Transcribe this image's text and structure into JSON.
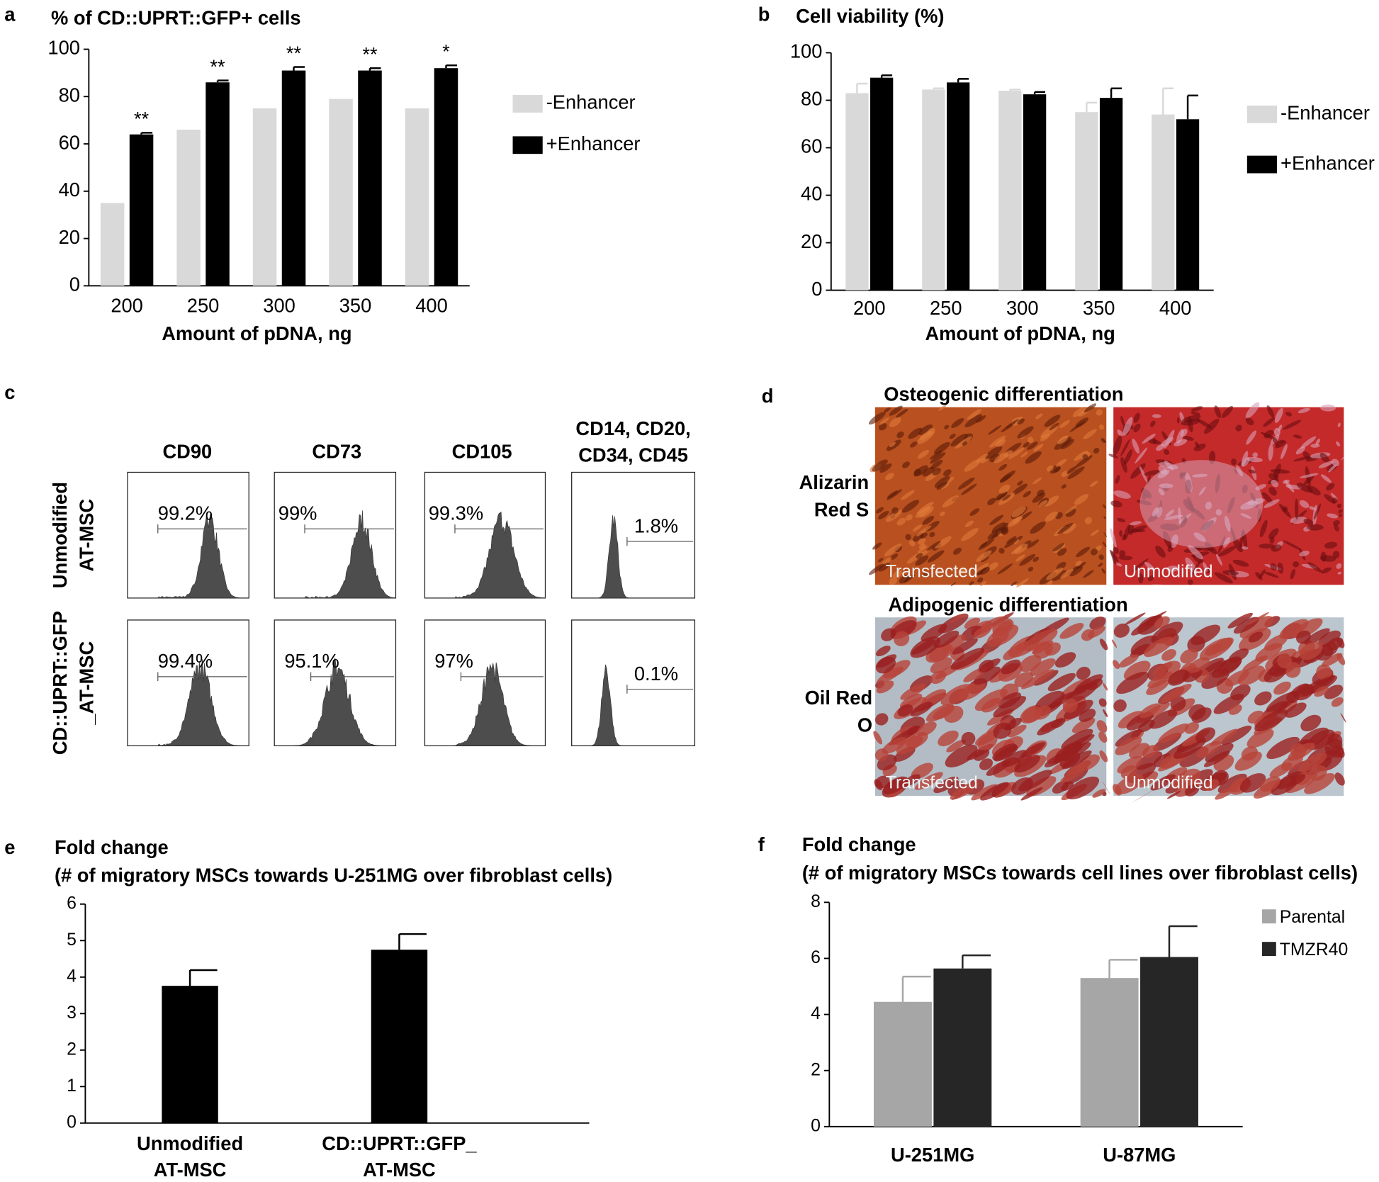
{
  "panel_labels": [
    "a",
    "b",
    "c",
    "d",
    "e",
    "f"
  ],
  "chart_data": [
    {
      "type": "bar",
      "title": "% of CD::UPRT::GFP+ cells",
      "x_label": "Amount of pDNA, ng",
      "categories": [
        "200",
        "250",
        "300",
        "350",
        "400"
      ],
      "series": [
        {
          "name": "-Enhancer",
          "color": "#d9d9d9",
          "values": [
            35,
            66,
            75,
            79,
            75
          ]
        },
        {
          "name": "+Enhancer",
          "color": "#000000",
          "values": [
            64,
            86,
            91,
            91,
            92
          ],
          "errors": [
            0.7,
            0.8,
            1.5,
            1,
            1.2
          ]
        }
      ],
      "annotations": [
        "**",
        "**",
        "**",
        "**",
        "*"
      ],
      "ylim": [
        0,
        100
      ],
      "yticks": [
        0,
        20,
        40,
        60,
        80,
        100
      ],
      "legend": "right"
    },
    {
      "type": "bar",
      "title": "Cell viability (%)",
      "x_label": "Amount of pDNA, ng",
      "categories": [
        "200",
        "250",
        "300",
        "350",
        "400"
      ],
      "series": [
        {
          "name": "-Enhancer",
          "color": "#d9d9d9",
          "values": [
            83,
            84.5,
            84,
            75,
            74
          ],
          "errors": [
            4,
            0.5,
            0.5,
            4,
            11
          ]
        },
        {
          "name": "+Enhancer",
          "color": "#000000",
          "values": [
            89.5,
            87.5,
            82.5,
            81,
            72
          ],
          "errors": [
            1,
            1.5,
            1,
            4,
            10
          ]
        }
      ],
      "ylim": [
        0,
        100
      ],
      "yticks": [
        0,
        20,
        40,
        60,
        80,
        100
      ],
      "legend": "right"
    },
    {
      "type": "bar",
      "title": "Fold change",
      "subtitle": "(# of migratory MSCs towards U-251MG over fibroblast cells)",
      "categories": [
        "Unmodified AT-MSC",
        "CD::UPRT::GFP_ AT-MSC"
      ],
      "series": [
        {
          "color": "#000000",
          "values": [
            3.76,
            4.75
          ],
          "errors": [
            0.43,
            0.43
          ]
        }
      ],
      "ylim": [
        0,
        6
      ],
      "yticks": [
        0,
        1,
        2,
        3,
        4,
        5,
        6
      ]
    },
    {
      "type": "bar",
      "title": "Fold change",
      "subtitle": "(# of migratory MSCs towards cell lines over fibroblast cells)",
      "categories": [
        "U-251MG",
        "U-87MG"
      ],
      "series": [
        {
          "name": "Parental",
          "color": "#a6a6a6",
          "values": [
            4.45,
            5.3
          ],
          "errors": [
            0.9,
            0.65
          ]
        },
        {
          "name": "TMZR40",
          "color": "#262626",
          "values": [
            5.64,
            6.05
          ],
          "errors": [
            0.47,
            1.1
          ]
        }
      ],
      "ylim": [
        0,
        8
      ],
      "yticks": [
        0,
        2,
        4,
        6,
        8
      ],
      "legend": "right"
    }
  ],
  "panel_c": {
    "column_headers": [
      [
        "CD90"
      ],
      [
        "CD73"
      ],
      [
        "CD105"
      ],
      [
        "CD14, CD20,",
        "CD34, CD45"
      ]
    ],
    "row_labels": [
      [
        "Unmodified",
        "AT-MSC"
      ],
      [
        "CD::UPRT::GFP",
        "_AT-MSC"
      ]
    ],
    "percentages": [
      [
        "99.2%",
        "99%",
        "99.3%",
        "1.8%"
      ],
      [
        "99.4%",
        "95.1%",
        "97%",
        "0.1%"
      ]
    ]
  },
  "panel_d": {
    "row_titles": [
      "Osteogenic differentiation",
      "Adipogenic differentiation"
    ],
    "row_labels": [
      [
        "Alizarin",
        "Red S"
      ],
      [
        "Oil Red",
        "O"
      ]
    ],
    "image_labels": [
      [
        "Transfected",
        "Unmodified"
      ],
      [
        "Transfected",
        "Unmodified"
      ]
    ]
  }
}
